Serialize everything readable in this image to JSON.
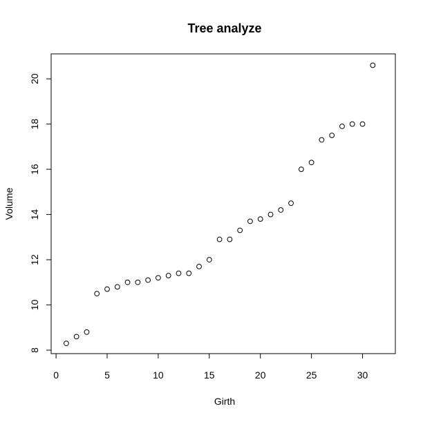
{
  "chart_data": {
    "type": "scatter",
    "title": "Tree analyze",
    "xlabel": "Girth",
    "ylabel": "Volume",
    "xlim": [
      0,
      31
    ],
    "ylim": [
      8,
      20.6
    ],
    "xticks": [
      0,
      5,
      10,
      15,
      20,
      25,
      30
    ],
    "yticks": [
      8,
      10,
      12,
      14,
      16,
      18,
      20
    ],
    "grid": false,
    "legend": "none",
    "marker": "open-circle",
    "x": [
      1,
      2,
      3,
      4,
      5,
      6,
      7,
      8,
      9,
      10,
      11,
      12,
      13,
      14,
      15,
      16,
      17,
      18,
      19,
      20,
      21,
      22,
      23,
      24,
      25,
      26,
      27,
      28,
      29,
      30,
      31
    ],
    "y": [
      8.3,
      8.6,
      8.8,
      10.5,
      10.7,
      10.8,
      11.0,
      11.0,
      11.1,
      11.2,
      11.3,
      11.4,
      11.4,
      11.7,
      12.0,
      12.9,
      12.9,
      13.3,
      13.7,
      13.8,
      14.0,
      14.2,
      14.5,
      16.0,
      16.3,
      17.3,
      17.5,
      17.9,
      18.0,
      18.0,
      20.6
    ]
  }
}
